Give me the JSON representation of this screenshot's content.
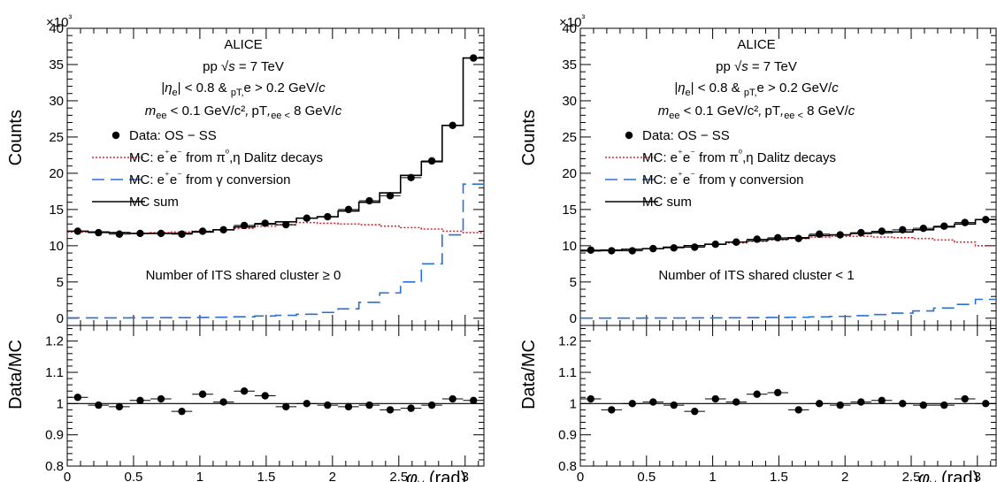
{
  "chart_data": [
    {
      "type": "line",
      "panel": "left",
      "annotation": [
        "ALICE",
        "pp √s = 7 TeV",
        "|ηe| < 0.8 & pT,e > 0.2 GeV/c",
        "mee < 0.1 GeV/c², pT,ee < 8 GeV/c"
      ],
      "region_label": "Number of ITS shared cluster ≥ 0",
      "ylabel": "Counts",
      "ylabel_ratio": "Data/MC",
      "xlabel": "φV (rad)",
      "y_multiplier": "×10³",
      "xlim": [
        0,
        3.1416
      ],
      "ylim": [
        -1,
        40
      ],
      "ratio_ylim": [
        0.8,
        1.25
      ],
      "bin_edges": [
        0,
        0.157,
        0.314,
        0.471,
        0.628,
        0.785,
        0.942,
        1.1,
        1.257,
        1.414,
        1.571,
        1.728,
        1.885,
        2.042,
        2.199,
        2.356,
        2.513,
        2.67,
        2.827,
        2.985,
        3.1416
      ],
      "x": [
        0.079,
        0.236,
        0.393,
        0.55,
        0.707,
        0.864,
        1.021,
        1.178,
        1.335,
        1.492,
        1.649,
        1.806,
        1.963,
        2.121,
        2.278,
        2.435,
        2.592,
        2.749,
        2.906,
        3.063
      ],
      "legend": [
        "Data: OS − SS",
        "MC: e⁺e⁻ from π⁰,η Dalitz decays",
        "MC: e⁺e⁻ from γ conversion",
        "MC sum"
      ],
      "series": [
        {
          "name": "Data: OS − SS",
          "style": "points",
          "color": "#000000",
          "values": [
            12.0,
            11.8,
            11.6,
            11.7,
            11.7,
            11.6,
            12.0,
            12.2,
            12.8,
            13.1,
            12.9,
            13.8,
            14.0,
            15.0,
            16.2,
            16.9,
            19.4,
            21.7,
            26.6,
            35.9
          ]
        },
        {
          "name": "MC: e⁺e⁻ from π⁰,η Dalitz decays",
          "style": "dotted-step",
          "color": "#e8232b",
          "values": [
            11.9,
            11.9,
            11.8,
            11.7,
            11.8,
            11.9,
            12.0,
            12.2,
            12.4,
            12.7,
            12.9,
            13.2,
            13.1,
            13.0,
            12.9,
            12.7,
            12.5,
            12.3,
            12.0,
            11.8
          ]
        },
        {
          "name": "MC: e⁺e⁻ from γ conversion",
          "style": "dashed-step",
          "color": "#2a6fd6",
          "values": [
            0.05,
            0.05,
            0.05,
            0.06,
            0.07,
            0.08,
            0.1,
            0.14,
            0.2,
            0.3,
            0.4,
            0.55,
            0.8,
            1.3,
            2.2,
            3.5,
            5.0,
            7.5,
            11.5,
            18.5
          ]
        },
        {
          "name": "MC sum",
          "style": "solid-step",
          "color": "#000000",
          "values": [
            12.0,
            11.9,
            11.8,
            11.7,
            11.7,
            11.7,
            11.9,
            12.2,
            12.6,
            13.0,
            13.3,
            13.8,
            14.0,
            14.8,
            16.0,
            17.3,
            19.7,
            21.6,
            26.6,
            35.9
          ]
        }
      ],
      "ratio": [
        1.02,
        0.995,
        0.99,
        1.01,
        1.015,
        0.975,
        1.03,
        1.005,
        1.04,
        1.025,
        0.99,
        1.0,
        0.995,
        0.99,
        0.995,
        0.98,
        0.985,
        0.995,
        1.015,
        1.01
      ],
      "xticks": [
        "0",
        "0.5",
        "1",
        "1.5",
        "2",
        "2.5",
        "3"
      ],
      "yticks": [
        "0",
        "5",
        "10",
        "15",
        "20",
        "25",
        "30",
        "35",
        "40"
      ],
      "ratio_yticks": [
        "0.8",
        "0.9",
        "1",
        "1.1",
        "1.2"
      ]
    },
    {
      "type": "line",
      "panel": "right",
      "annotation": [
        "ALICE",
        "pp √s = 7 TeV",
        "|ηe| < 0.8 & pT,e > 0.2 GeV/c",
        "mee < 0.1 GeV/c², pT,ee < 8 GeV/c"
      ],
      "region_label": "Number of ITS shared cluster < 1",
      "ylabel": "Counts",
      "ylabel_ratio": "Data/MC",
      "xlabel": "φV (rad)",
      "y_multiplier": "×10³",
      "xlim": [
        0,
        3.1416
      ],
      "ylim": [
        -1,
        40
      ],
      "ratio_ylim": [
        0.8,
        1.25
      ],
      "bin_edges": [
        0,
        0.157,
        0.314,
        0.471,
        0.628,
        0.785,
        0.942,
        1.1,
        1.257,
        1.414,
        1.571,
        1.728,
        1.885,
        2.042,
        2.199,
        2.356,
        2.513,
        2.67,
        2.827,
        2.985,
        3.1416
      ],
      "x": [
        0.079,
        0.236,
        0.393,
        0.55,
        0.707,
        0.864,
        1.021,
        1.178,
        1.335,
        1.492,
        1.649,
        1.806,
        1.963,
        2.121,
        2.278,
        2.435,
        2.592,
        2.749,
        2.906,
        3.063
      ],
      "legend": [
        "Data: OS − SS",
        "MC: e⁺e⁻ from π⁰,η Dalitz decays",
        "MC: e⁺e⁻ from γ conversion",
        "MC sum"
      ],
      "series": [
        {
          "name": "Data: OS − SS",
          "style": "points",
          "color": "#000000",
          "values": [
            9.4,
            9.3,
            9.3,
            9.6,
            9.7,
            9.8,
            10.2,
            10.5,
            10.9,
            11.1,
            11.0,
            11.6,
            11.5,
            11.8,
            12.0,
            12.2,
            12.4,
            12.7,
            13.2,
            13.6
          ]
        },
        {
          "name": "MC: e⁺e⁻ from π⁰,η Dalitz decays",
          "style": "dotted-step",
          "color": "#e8232b",
          "values": [
            9.3,
            9.4,
            9.5,
            9.6,
            9.8,
            10.0,
            10.2,
            10.4,
            10.6,
            10.8,
            11.0,
            11.2,
            11.3,
            11.3,
            11.2,
            11.1,
            11.0,
            10.8,
            10.5,
            10.0
          ]
        },
        {
          "name": "MC: e⁺e⁻ from γ conversion",
          "style": "dashed-step",
          "color": "#2a6fd6",
          "values": [
            0.02,
            0.02,
            0.02,
            0.03,
            0.03,
            0.04,
            0.05,
            0.06,
            0.08,
            0.1,
            0.13,
            0.18,
            0.25,
            0.35,
            0.5,
            0.7,
            1.0,
            1.4,
            1.9,
            2.6
          ]
        },
        {
          "name": "MC sum",
          "style": "solid-step",
          "color": "#000000",
          "values": [
            9.3,
            9.4,
            9.5,
            9.6,
            9.8,
            10.0,
            10.2,
            10.5,
            10.7,
            10.9,
            11.1,
            11.4,
            11.5,
            11.7,
            11.8,
            11.9,
            12.2,
            12.6,
            13.0,
            13.6
          ]
        }
      ],
      "ratio": [
        1.015,
        0.98,
        1.0,
        1.005,
        0.995,
        0.975,
        1.015,
        1.005,
        1.03,
        1.035,
        0.98,
        1.0,
        0.995,
        1.005,
        1.01,
        1.0,
        0.995,
        0.995,
        1.015,
        1.0
      ],
      "xticks": [
        "0",
        "0.5",
        "1",
        "1.5",
        "2",
        "2.5",
        "3"
      ],
      "yticks": [
        "0",
        "5",
        "10",
        "15",
        "20",
        "25",
        "30",
        "35",
        "40"
      ],
      "ratio_yticks": [
        "0.8",
        "0.9",
        "1",
        "1.1",
        "1.2"
      ]
    }
  ]
}
